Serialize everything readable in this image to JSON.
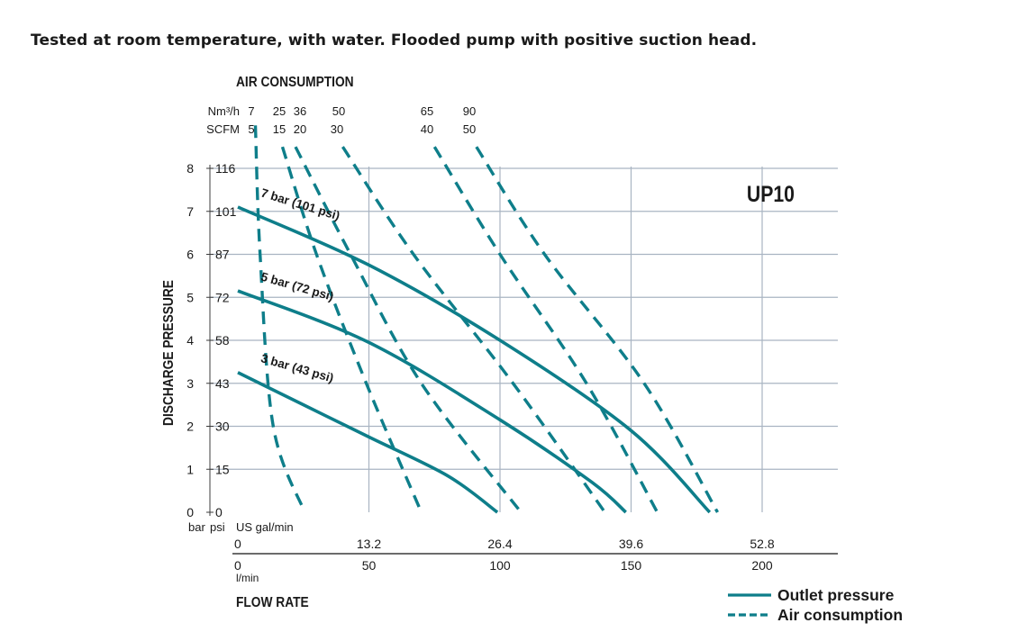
{
  "note": "Tested at room temperature, with water. Flooded pump with positive suction head.",
  "chart_data": {
    "type": "line",
    "model": "UP10",
    "top_axis": {
      "title": "AIR CONSUMPTION",
      "row1_unit": "Nm³/h",
      "row1": [
        "7",
        "25",
        "36",
        "50",
        "65",
        "90"
      ],
      "row2_unit": "SCFM",
      "row2": [
        "5",
        "15",
        "20",
        "30",
        "40",
        "50"
      ]
    },
    "y_axis": {
      "title": "DISCHARGE PRESSURE",
      "unit_bar": "bar",
      "unit_psi": "psi",
      "bar_ticks": [
        "0",
        "1",
        "2",
        "3",
        "4",
        "5",
        "6",
        "7",
        "8"
      ],
      "psi_ticks": [
        "0",
        "15",
        "30",
        "43",
        "58",
        "72",
        "87",
        "101",
        "116"
      ],
      "ylim": [
        0,
        8
      ]
    },
    "x_axis": {
      "title": "FLOW RATE",
      "unit_gal": "US gal/min",
      "gal_ticks": [
        "0",
        "13.2",
        "26.4",
        "39.6",
        "52.8"
      ],
      "unit_lpm": "l/min",
      "lpm_ticks": [
        "0",
        "50",
        "100",
        "150",
        "200"
      ],
      "xlim": [
        0,
        200
      ]
    },
    "outlet_pressure_series": [
      {
        "name": "7 bar (101 psi)",
        "points": [
          [
            0,
            7.1
          ],
          [
            50,
            5.75
          ],
          [
            100,
            4.0
          ],
          [
            150,
            1.9
          ],
          [
            180,
            0
          ]
        ]
      },
      {
        "name": "5 bar (72 psi)",
        "points": [
          [
            0,
            5.15
          ],
          [
            50,
            3.95
          ],
          [
            100,
            2.15
          ],
          [
            135,
            0.7
          ],
          [
            148,
            0
          ]
        ]
      },
      {
        "name": "3 bar (43 psi)",
        "points": [
          [
            0,
            3.25
          ],
          [
            25,
            2.5
          ],
          [
            50,
            1.75
          ],
          [
            80,
            0.85
          ],
          [
            99,
            0
          ]
        ]
      }
    ],
    "air_consumption_series": [
      {
        "label": "7 / 5",
        "points": [
          [
            6.7,
            9.0
          ],
          [
            8.5,
            6.0
          ],
          [
            13.5,
            2.0
          ],
          [
            25.5,
            0
          ]
        ]
      },
      {
        "label": "25 / 15",
        "points": [
          [
            17,
            8.5
          ],
          [
            30,
            6.0
          ],
          [
            49,
            3.0
          ],
          [
            70,
            0
          ]
        ]
      },
      {
        "label": "36 / 20",
        "points": [
          [
            22,
            8.5
          ],
          [
            43,
            6.0
          ],
          [
            70,
            3.0
          ],
          [
            108,
            0
          ]
        ]
      },
      {
        "label": "50 / 30",
        "points": [
          [
            40,
            8.5
          ],
          [
            67,
            6.0
          ],
          [
            105,
            3.0
          ],
          [
            140,
            0
          ]
        ]
      },
      {
        "label": "65 / 40",
        "points": [
          [
            75,
            8.5
          ],
          [
            100,
            6.0
          ],
          [
            133,
            3.0
          ],
          [
            160,
            0
          ]
        ]
      },
      {
        "label": "90 / 50",
        "points": [
          [
            91,
            8.5
          ],
          [
            117,
            6.0
          ],
          [
            155,
            3.0
          ],
          [
            183,
            0
          ]
        ]
      }
    ],
    "grid": true,
    "legend": {
      "position": "bottom-right",
      "items": [
        "Outlet pressure",
        "Air consumption"
      ]
    },
    "colors": {
      "curve": "#0e7e8a",
      "grid": "#a9b4c2",
      "axis": "#3c3c3c"
    }
  }
}
